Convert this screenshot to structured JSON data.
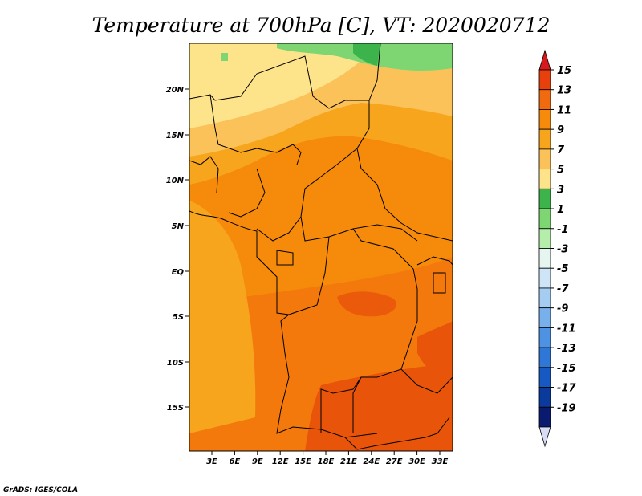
{
  "title": "Temperature at 700hPa [C], VT: 2020020712",
  "credit": "GrADS: IGES/COLA",
  "map": {
    "lat_labels": [
      "20N",
      "15N",
      "10N",
      "5N",
      "EQ",
      "5S",
      "10S",
      "15S"
    ],
    "lon_labels": [
      "3E",
      "6E",
      "9E",
      "12E",
      "15E",
      "18E",
      "21E",
      "24E",
      "27E",
      "30E",
      "33E"
    ]
  },
  "colorbar": {
    "labels": [
      "15",
      "13",
      "11",
      "9",
      "7",
      "5",
      "3",
      "1",
      "-1",
      "-3",
      "-5",
      "-7",
      "-9",
      "-11",
      "-13",
      "-15",
      "-17",
      "-19"
    ],
    "colors": [
      "#d7191c",
      "#e8400c",
      "#f06b0f",
      "#f58a0b",
      "#f7a51c",
      "#fbc25a",
      "#fde38a",
      "#3cb44b",
      "#7dd672",
      "#b4eeaa",
      "#e6f5f0",
      "#cde5f7",
      "#a5cdf2",
      "#78b0ec",
      "#4e93e3",
      "#2f77d6",
      "#1659c3",
      "#0a3a9c",
      "#0a1a6e",
      "#d8dcf5"
    ]
  }
}
